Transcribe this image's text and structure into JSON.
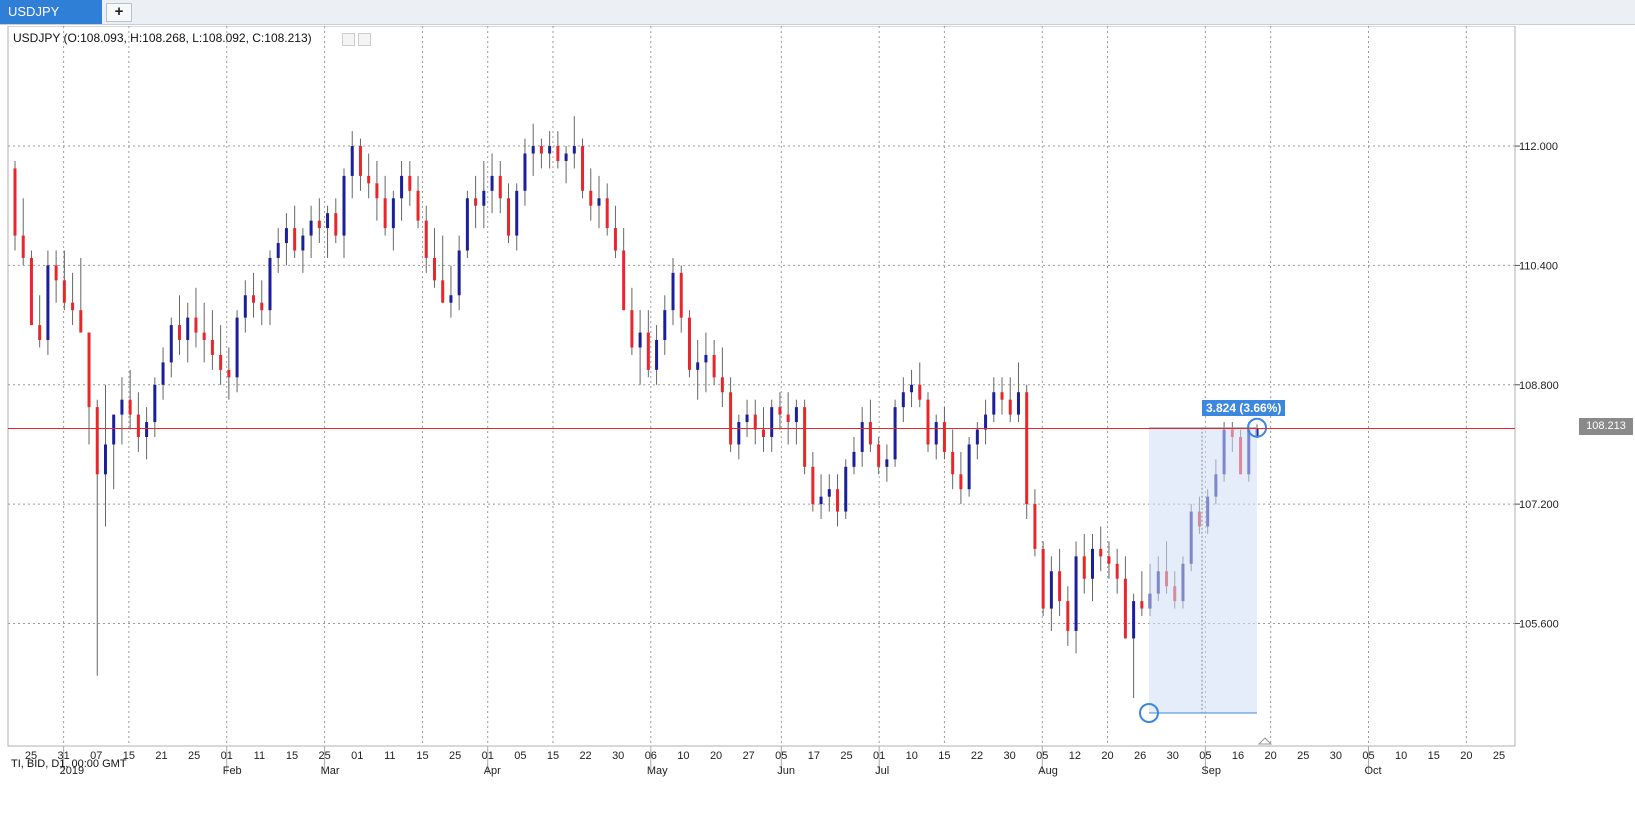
{
  "tabs": {
    "active_label": "USDJPY",
    "add_label": "+"
  },
  "chart_header": {
    "symbol_info": "USDJPY (O:108.093, H:108.268, L:108.092, C:108.213)"
  },
  "footer_info": "TI, BID, D1, 00:00 GMT",
  "current_price_label": "108.213",
  "measure_label": "3.824 (3.66%)",
  "colors": {
    "bull": "#1a1f9c",
    "bear": "#e8262b",
    "price_line": "#e8262b",
    "grid": "#9a9a9a",
    "accent": "#2f7fd6"
  },
  "chart_data": {
    "type": "candlestick",
    "y_ticks": [
      "112.000",
      "110.400",
      "108.800",
      "107.200",
      "105.600"
    ],
    "x_day_ticks": [
      "25",
      "31",
      "07",
      "15",
      "21",
      "25",
      "01",
      "11",
      "15",
      "25",
      "01",
      "11",
      "15",
      "25",
      "01",
      "05",
      "15",
      "22",
      "30",
      "06",
      "10",
      "20",
      "27",
      "05",
      "17",
      "25",
      "01",
      "10",
      "15",
      "22",
      "30",
      "05",
      "12",
      "20",
      "26",
      "30",
      "05",
      "16",
      "20",
      "25",
      "30",
      "05",
      "10",
      "15",
      "20",
      "25"
    ],
    "x_month_labels": [
      "2019",
      "Feb",
      "Mar",
      "Apr",
      "May",
      "Jun",
      "Jul",
      "Aug",
      "Sep",
      "Oct"
    ],
    "ylim": [
      104.4,
      113.1
    ],
    "current_price": 108.213,
    "measure": {
      "from": 104.4,
      "to": 108.224
    },
    "candles": [
      [
        111.7,
        111.8,
        110.6,
        110.8
      ],
      [
        110.8,
        111.3,
        110.4,
        110.5
      ],
      [
        110.5,
        110.6,
        109.6,
        109.6
      ],
      [
        109.6,
        110.0,
        109.3,
        109.4
      ],
      [
        109.4,
        110.6,
        109.2,
        110.4
      ],
      [
        110.4,
        110.6,
        109.9,
        110.2
      ],
      [
        110.2,
        110.6,
        109.8,
        109.9
      ],
      [
        109.9,
        110.3,
        109.6,
        109.8
      ],
      [
        109.8,
        110.5,
        109.5,
        109.5
      ],
      [
        109.5,
        109.5,
        108.0,
        108.5
      ],
      [
        108.5,
        108.6,
        104.9,
        107.6
      ],
      [
        107.6,
        108.8,
        106.9,
        108.0
      ],
      [
        108.0,
        108.4,
        107.4,
        108.4
      ],
      [
        108.4,
        108.9,
        108.0,
        108.6
      ],
      [
        108.6,
        109.0,
        108.2,
        108.4
      ],
      [
        108.4,
        108.7,
        107.9,
        108.1
      ],
      [
        108.1,
        108.5,
        107.8,
        108.3
      ],
      [
        108.3,
        108.9,
        108.1,
        108.8
      ],
      [
        108.8,
        109.3,
        108.6,
        109.1
      ],
      [
        109.1,
        109.7,
        108.9,
        109.6
      ],
      [
        109.6,
        110.0,
        109.2,
        109.4
      ],
      [
        109.4,
        109.9,
        109.1,
        109.7
      ],
      [
        109.7,
        110.1,
        109.3,
        109.5
      ],
      [
        109.5,
        109.9,
        109.1,
        109.4
      ],
      [
        109.4,
        109.8,
        109.0,
        109.2
      ],
      [
        109.2,
        109.6,
        108.8,
        109.0
      ],
      [
        109.0,
        109.3,
        108.6,
        108.9
      ],
      [
        108.9,
        109.8,
        108.7,
        109.7
      ],
      [
        109.7,
        110.2,
        109.5,
        110.0
      ],
      [
        110.0,
        110.3,
        109.7,
        109.9
      ],
      [
        109.9,
        110.2,
        109.6,
        109.8
      ],
      [
        109.8,
        110.6,
        109.6,
        110.5
      ],
      [
        110.5,
        110.9,
        110.3,
        110.7
      ],
      [
        110.7,
        111.1,
        110.4,
        110.9
      ],
      [
        110.9,
        111.2,
        110.5,
        110.6
      ],
      [
        110.6,
        110.9,
        110.3,
        110.8
      ],
      [
        110.8,
        111.2,
        110.5,
        111.0
      ],
      [
        111.0,
        111.3,
        110.7,
        110.9
      ],
      [
        110.9,
        111.2,
        110.5,
        111.1
      ],
      [
        111.1,
        111.3,
        110.7,
        110.8
      ],
      [
        110.8,
        111.7,
        110.5,
        111.6
      ],
      [
        111.6,
        112.2,
        111.3,
        112.0
      ],
      [
        112.0,
        112.1,
        111.4,
        111.6
      ],
      [
        111.6,
        111.9,
        111.3,
        111.5
      ],
      [
        111.5,
        111.8,
        111.0,
        111.3
      ],
      [
        111.3,
        111.6,
        110.8,
        110.9
      ],
      [
        110.9,
        111.4,
        110.6,
        111.3
      ],
      [
        111.3,
        111.8,
        111.0,
        111.6
      ],
      [
        111.6,
        111.8,
        111.2,
        111.4
      ],
      [
        111.4,
        111.6,
        110.9,
        111.0
      ],
      [
        111.0,
        111.2,
        110.3,
        110.5
      ],
      [
        110.5,
        110.9,
        110.1,
        110.2
      ],
      [
        110.2,
        110.8,
        109.9,
        109.9
      ],
      [
        109.9,
        110.4,
        109.7,
        110.0
      ],
      [
        110.0,
        110.8,
        109.8,
        110.6
      ],
      [
        110.6,
        111.4,
        110.5,
        111.3
      ],
      [
        111.3,
        111.6,
        110.9,
        111.2
      ],
      [
        111.2,
        111.8,
        110.9,
        111.4
      ],
      [
        111.4,
        111.9,
        111.1,
        111.6
      ],
      [
        111.6,
        111.8,
        111.1,
        111.3
      ],
      [
        111.3,
        111.5,
        110.7,
        110.8
      ],
      [
        110.8,
        111.5,
        110.6,
        111.4
      ],
      [
        111.4,
        112.1,
        111.2,
        111.9
      ],
      [
        111.9,
        112.3,
        111.6,
        112.0
      ],
      [
        112.0,
        112.1,
        111.7,
        111.9
      ],
      [
        111.9,
        112.2,
        111.7,
        112.0
      ],
      [
        112.0,
        112.2,
        111.7,
        111.8
      ],
      [
        111.8,
        112.0,
        111.5,
        111.9
      ],
      [
        111.9,
        112.4,
        111.7,
        112.0
      ],
      [
        112.0,
        112.1,
        111.3,
        111.4
      ],
      [
        111.4,
        111.7,
        111.0,
        111.2
      ],
      [
        111.2,
        111.6,
        110.9,
        111.3
      ],
      [
        111.3,
        111.5,
        110.8,
        110.9
      ],
      [
        110.9,
        111.2,
        110.5,
        110.6
      ],
      [
        110.6,
        110.9,
        109.8,
        109.8
      ],
      [
        109.8,
        110.1,
        109.2,
        109.3
      ],
      [
        109.3,
        109.8,
        108.8,
        109.5
      ],
      [
        109.5,
        109.8,
        108.9,
        109.0
      ],
      [
        109.0,
        109.6,
        108.8,
        109.4
      ],
      [
        109.4,
        110.0,
        109.2,
        109.8
      ],
      [
        109.8,
        110.5,
        109.6,
        110.3
      ],
      [
        110.3,
        110.4,
        109.5,
        109.7
      ],
      [
        109.7,
        109.8,
        108.9,
        109.0
      ],
      [
        109.0,
        109.4,
        108.6,
        109.1
      ],
      [
        109.1,
        109.5,
        108.7,
        109.2
      ],
      [
        109.2,
        109.4,
        108.8,
        108.9
      ],
      [
        108.9,
        109.3,
        108.5,
        108.7
      ],
      [
        108.7,
        108.9,
        107.9,
        108.0
      ],
      [
        108.0,
        108.4,
        107.8,
        108.3
      ],
      [
        108.3,
        108.6,
        108.1,
        108.4
      ],
      [
        108.4,
        108.6,
        108.0,
        108.2
      ],
      [
        108.2,
        108.5,
        107.9,
        108.1
      ],
      [
        108.1,
        108.6,
        107.9,
        108.5
      ],
      [
        108.5,
        108.7,
        108.2,
        108.4
      ],
      [
        108.4,
        108.7,
        108.0,
        108.3
      ],
      [
        108.3,
        108.6,
        108.0,
        108.5
      ],
      [
        108.5,
        108.6,
        107.6,
        107.7
      ],
      [
        107.7,
        107.9,
        107.1,
        107.2
      ],
      [
        107.2,
        107.6,
        107.0,
        107.3
      ],
      [
        107.3,
        107.6,
        107.1,
        107.4
      ],
      [
        107.4,
        107.6,
        106.9,
        107.1
      ],
      [
        107.1,
        107.8,
        107.0,
        107.7
      ],
      [
        107.7,
        108.1,
        107.6,
        107.9
      ],
      [
        107.9,
        108.5,
        107.7,
        108.3
      ],
      [
        108.3,
        108.6,
        107.9,
        108.0
      ],
      [
        108.0,
        108.1,
        107.6,
        107.7
      ],
      [
        107.7,
        108.0,
        107.5,
        107.8
      ],
      [
        107.8,
        108.6,
        107.7,
        108.5
      ],
      [
        108.5,
        108.9,
        108.3,
        108.7
      ],
      [
        108.7,
        109.0,
        108.5,
        108.8
      ],
      [
        108.8,
        109.1,
        108.5,
        108.6
      ],
      [
        108.6,
        108.7,
        107.9,
        108.0
      ],
      [
        108.0,
        108.4,
        107.8,
        108.3
      ],
      [
        108.3,
        108.5,
        107.8,
        107.9
      ],
      [
        107.9,
        108.2,
        107.4,
        107.6
      ],
      [
        107.6,
        107.9,
        107.2,
        107.4
      ],
      [
        107.4,
        108.1,
        107.3,
        108.0
      ],
      [
        108.0,
        108.3,
        107.8,
        108.2
      ],
      [
        108.2,
        108.6,
        108.0,
        108.4
      ],
      [
        108.4,
        108.9,
        108.3,
        108.7
      ],
      [
        108.7,
        108.9,
        108.4,
        108.6
      ],
      [
        108.6,
        108.9,
        108.3,
        108.4
      ],
      [
        108.4,
        109.1,
        108.3,
        108.7
      ],
      [
        108.7,
        108.8,
        107.0,
        107.2
      ],
      [
        107.2,
        107.4,
        106.5,
        106.6
      ],
      [
        106.6,
        106.7,
        105.7,
        105.8
      ],
      [
        105.8,
        106.5,
        105.5,
        106.3
      ],
      [
        106.3,
        106.6,
        105.7,
        105.9
      ],
      [
        105.9,
        106.1,
        105.3,
        105.5
      ],
      [
        105.5,
        106.7,
        105.2,
        106.5
      ],
      [
        106.5,
        106.8,
        106.0,
        106.2
      ],
      [
        106.2,
        106.8,
        105.9,
        106.6
      ],
      [
        106.6,
        106.9,
        106.3,
        106.5
      ],
      [
        106.5,
        106.7,
        106.2,
        106.4
      ],
      [
        106.4,
        106.6,
        106.0,
        106.2
      ],
      [
        106.2,
        106.5,
        105.4,
        105.4
      ],
      [
        105.4,
        106.0,
        104.6,
        105.9
      ],
      [
        105.9,
        106.3,
        105.7,
        105.8
      ],
      [
        105.8,
        106.4,
        105.7,
        106.0
      ],
      [
        106.0,
        106.5,
        105.9,
        106.3
      ],
      [
        106.3,
        106.7,
        106.0,
        106.1
      ],
      [
        106.1,
        106.3,
        105.8,
        105.9
      ],
      [
        105.9,
        106.5,
        105.8,
        106.4
      ],
      [
        106.4,
        107.2,
        106.3,
        107.1
      ],
      [
        107.1,
        107.3,
        106.8,
        106.9
      ],
      [
        106.9,
        107.4,
        106.8,
        107.3
      ],
      [
        107.3,
        107.8,
        107.2,
        107.6
      ],
      [
        107.6,
        108.3,
        107.5,
        108.2
      ],
      [
        108.2,
        108.3,
        107.9,
        108.1
      ],
      [
        108.1,
        108.2,
        107.6,
        107.6
      ],
      [
        107.6,
        108.3,
        107.5,
        108.2
      ],
      [
        108.09,
        108.27,
        108.09,
        108.21
      ]
    ]
  }
}
